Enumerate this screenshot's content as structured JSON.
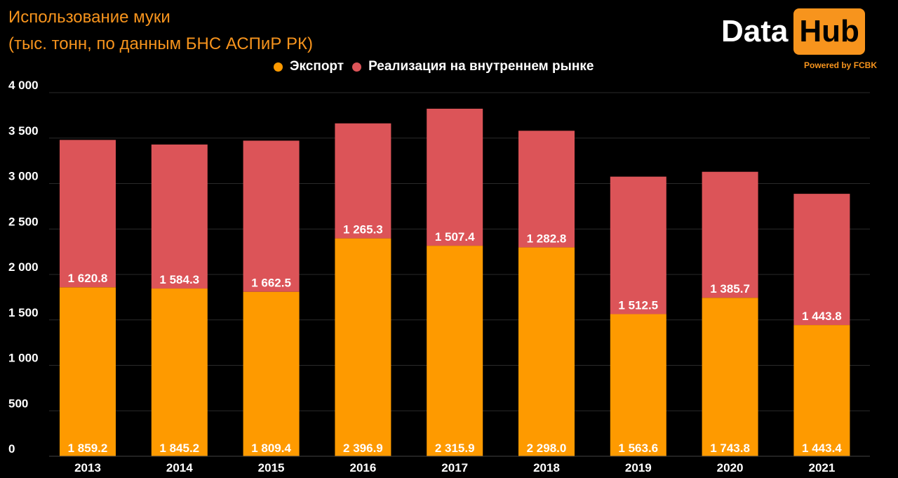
{
  "header": {
    "title_line1": "Использование муки",
    "title_line2": "(тыс. тонн, по данным БНС АСПиР РК)"
  },
  "logo": {
    "data": "Data",
    "hub": "Hub",
    "powered": "Powered by FCBK"
  },
  "colors": {
    "export": "#fe9a00",
    "domestic": "#dc5458",
    "accent": "#f7941d",
    "background": "#000000"
  },
  "chart_data": {
    "type": "bar",
    "stacked": true,
    "categories": [
      "2013",
      "2014",
      "2015",
      "2016",
      "2017",
      "2018",
      "2019",
      "2020",
      "2021"
    ],
    "series": [
      {
        "name": "Экспорт",
        "values": [
          1859.2,
          1845.2,
          1809.4,
          2396.9,
          2315.9,
          2298.0,
          1563.6,
          1743.8,
          1443.4
        ]
      },
      {
        "name": "Реализация на внутреннем рынке",
        "values": [
          1620.8,
          1584.3,
          1662.5,
          1265.3,
          1507.4,
          1282.8,
          1512.5,
          1385.7,
          1443.8
        ]
      }
    ],
    "value_labels": [
      [
        "1 859.2",
        "1 845.2",
        "1 809.4",
        "2 396.9",
        "2 315.9",
        "2 298.0",
        "1 563.6",
        "1 743.8",
        "1 443.4"
      ],
      [
        "1 620.8",
        "1 584.3",
        "1 662.5",
        "1 265.3",
        "1 507.4",
        "1 282.8",
        "1 512.5",
        "1 385.7",
        "1 443.8"
      ]
    ],
    "y_ticks": [
      0,
      500,
      1000,
      1500,
      2000,
      2500,
      3000,
      3500,
      4000
    ],
    "y_tick_labels": [
      "0",
      "500",
      "1 000",
      "1 500",
      "2 000",
      "2 500",
      "3 000",
      "3 500",
      "4 000"
    ],
    "ylim": [
      0,
      4000
    ],
    "legend_position": "top-center",
    "grid": true
  }
}
